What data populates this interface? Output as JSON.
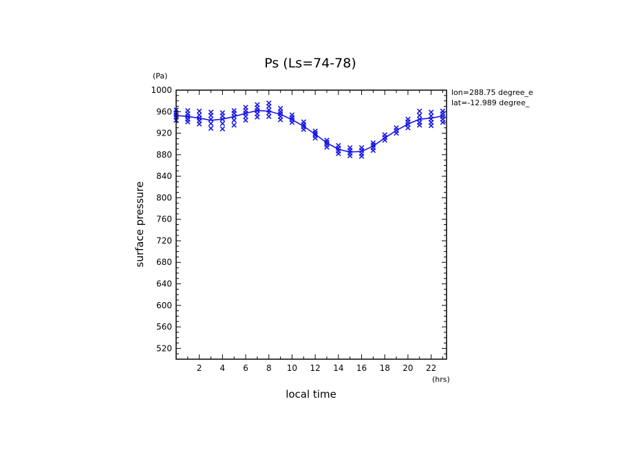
{
  "chart_data": {
    "type": "line",
    "title": "Ps (Ls=74-78)",
    "xlabel": "local time",
    "ylabel": "surface pressure",
    "x_unit": "(hrs)",
    "y_unit": "(Pa)",
    "xlim": [
      0,
      23.33
    ],
    "ylim": [
      500,
      1000
    ],
    "x_ticks": [
      2,
      4,
      6,
      8,
      10,
      12,
      14,
      16,
      18,
      20,
      22
    ],
    "y_ticks": [
      520,
      560,
      600,
      640,
      680,
      720,
      760,
      800,
      840,
      880,
      920,
      960,
      1000
    ],
    "grid": false,
    "annotations": [
      "lon=288.75 degree_e",
      "lat=-12.989 degree_"
    ],
    "color": "#1414e6",
    "series": [
      {
        "kind": "line",
        "x": [
          0,
          1,
          2,
          3,
          4,
          5,
          6,
          7,
          8,
          9,
          10,
          11,
          12,
          13,
          14,
          15,
          16,
          17,
          18,
          19,
          20,
          21,
          22,
          23
        ],
        "y": [
          953,
          951,
          948,
          944,
          946,
          951,
          957,
          962,
          961,
          955,
          945,
          933,
          918,
          902,
          890,
          885,
          886,
          896,
          911,
          925,
          937,
          946,
          948,
          952
        ]
      },
      {
        "kind": "scatter",
        "marker": "x",
        "points": [
          [
            0,
            963
          ],
          [
            0,
            958
          ],
          [
            0,
            954
          ],
          [
            0,
            950
          ],
          [
            0,
            944
          ],
          [
            1,
            962
          ],
          [
            1,
            956
          ],
          [
            1,
            951
          ],
          [
            1,
            946
          ],
          [
            1,
            941
          ],
          [
            2,
            961
          ],
          [
            2,
            954
          ],
          [
            2,
            948
          ],
          [
            2,
            943
          ],
          [
            2,
            937
          ],
          [
            3,
            959
          ],
          [
            3,
            953
          ],
          [
            3,
            946
          ],
          [
            3,
            938
          ],
          [
            3,
            929
          ],
          [
            4,
            958
          ],
          [
            4,
            952
          ],
          [
            4,
            946
          ],
          [
            4,
            938
          ],
          [
            4,
            928
          ],
          [
            5,
            962
          ],
          [
            5,
            957
          ],
          [
            5,
            951
          ],
          [
            5,
            944
          ],
          [
            5,
            935
          ],
          [
            6,
            968
          ],
          [
            6,
            962
          ],
          [
            6,
            957
          ],
          [
            6,
            951
          ],
          [
            6,
            944
          ],
          [
            7,
            973
          ],
          [
            7,
            967
          ],
          [
            7,
            962
          ],
          [
            7,
            956
          ],
          [
            7,
            950
          ],
          [
            8,
            976
          ],
          [
            8,
            970
          ],
          [
            8,
            963
          ],
          [
            8,
            958
          ],
          [
            8,
            951
          ],
          [
            9,
            966
          ],
          [
            9,
            960
          ],
          [
            9,
            956
          ],
          [
            9,
            951
          ],
          [
            9,
            945
          ],
          [
            10,
            954
          ],
          [
            10,
            949
          ],
          [
            10,
            945
          ],
          [
            10,
            940
          ],
          [
            11,
            941
          ],
          [
            11,
            936
          ],
          [
            11,
            932
          ],
          [
            11,
            927
          ],
          [
            12,
            924
          ],
          [
            12,
            920
          ],
          [
            12,
            916
          ],
          [
            12,
            911
          ],
          [
            13,
            907
          ],
          [
            13,
            903
          ],
          [
            13,
            899
          ],
          [
            13,
            894
          ],
          [
            14,
            897
          ],
          [
            14,
            892
          ],
          [
            14,
            887
          ],
          [
            14,
            882
          ],
          [
            15,
            893
          ],
          [
            15,
            888
          ],
          [
            15,
            883
          ],
          [
            15,
            878
          ],
          [
            16,
            893
          ],
          [
            16,
            888
          ],
          [
            16,
            882
          ],
          [
            16,
            877
          ],
          [
            17,
            902
          ],
          [
            17,
            898
          ],
          [
            17,
            893
          ],
          [
            17,
            888
          ],
          [
            18,
            917
          ],
          [
            18,
            912
          ],
          [
            18,
            907
          ],
          [
            19,
            930
          ],
          [
            19,
            925
          ],
          [
            19,
            920
          ],
          [
            20,
            946
          ],
          [
            20,
            941
          ],
          [
            20,
            936
          ],
          [
            20,
            930
          ],
          [
            21,
            961
          ],
          [
            21,
            953
          ],
          [
            21,
            946
          ],
          [
            21,
            940
          ],
          [
            21,
            935
          ],
          [
            22,
            959
          ],
          [
            22,
            952
          ],
          [
            22,
            946
          ],
          [
            22,
            940
          ],
          [
            22,
            934
          ],
          [
            23,
            961
          ],
          [
            23,
            956
          ],
          [
            23,
            951
          ],
          [
            23,
            946
          ],
          [
            23,
            940
          ]
        ]
      }
    ]
  }
}
